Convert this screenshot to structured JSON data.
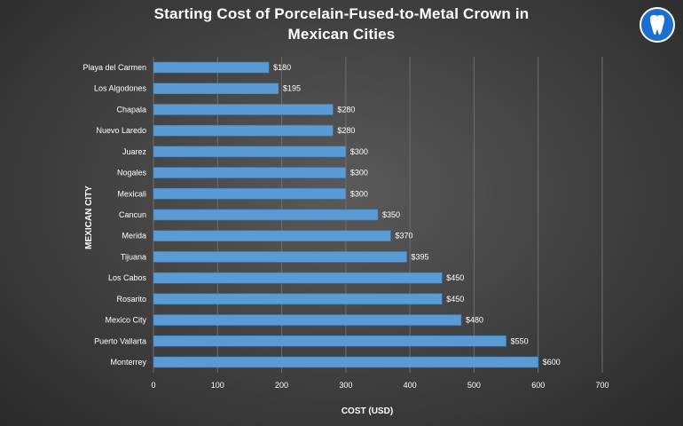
{
  "chart_data": {
    "type": "bar",
    "orientation": "horizontal",
    "title_lines": [
      "Starting  Cost of Porcelain-Fused-to-Metal  Crown in",
      "Mexican Cities"
    ],
    "xlabel": "COST (USD)",
    "ylabel": "MEXICAN CITY",
    "xlim": [
      0,
      700
    ],
    "xticks": [
      "0",
      "100",
      "200",
      "300",
      "400",
      "500",
      "600",
      "700"
    ],
    "xtick_values": [
      0,
      100,
      200,
      300,
      400,
      500,
      600,
      700
    ],
    "grid": true,
    "legend": "none",
    "bar_color": "#5b9bd5",
    "categories": [
      "Playa del Carmen",
      "Los Algodones",
      "Chapala",
      "Nuevo Laredo",
      "Juarez",
      "Nogales",
      "Mexicali",
      "Cancun",
      "Merida",
      "Tijuana",
      "Los Cabos",
      "Rosarito",
      "Mexico City",
      "Puerto Vallarta",
      "Monterrey"
    ],
    "values": [
      180,
      195,
      280,
      280,
      300,
      300,
      300,
      350,
      370,
      395,
      450,
      450,
      480,
      550,
      600
    ],
    "data_labels": [
      "$180",
      "$195",
      "$280",
      "$280",
      "$300",
      "$300",
      "$300",
      "$350",
      "$370",
      "$395",
      "$450",
      "$450",
      "$480",
      "$550",
      "$600"
    ]
  },
  "logo": {
    "icon": "tooth-icon",
    "color": "#1a6fd1"
  }
}
